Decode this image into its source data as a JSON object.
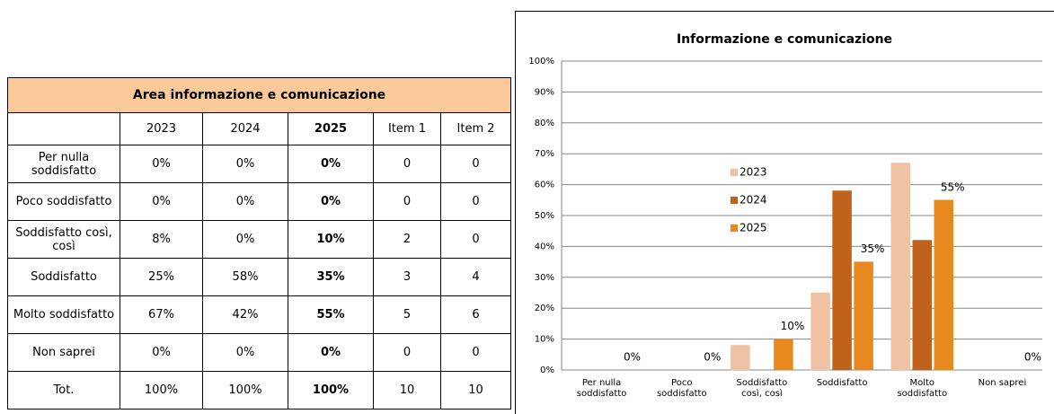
{
  "table": {
    "title": "Area informazione e comunicazione",
    "columns": [
      "2023",
      "2024",
      "2025",
      "Item 1",
      "Item 2"
    ],
    "rows": [
      [
        "Per nulla soddisfatto",
        "0%",
        "0%",
        "0%",
        "0",
        "0"
      ],
      [
        "Poco soddisfatto",
        "0%",
        "0%",
        "0%",
        "0",
        "0"
      ],
      [
        "Soddisfatto così, così",
        "8%",
        "0%",
        "10%",
        "2",
        "0"
      ],
      [
        "Soddisfatto",
        "25%",
        "58%",
        "35%",
        "3",
        "4"
      ],
      [
        "Molto soddisfatto",
        "67%",
        "42%",
        "55%",
        "5",
        "6"
      ],
      [
        "Non saprei",
        "0%",
        "0%",
        "0%",
        "0",
        "0"
      ],
      [
        "Tot.",
        "100%",
        "100%",
        "100%",
        "10",
        "10"
      ]
    ]
  },
  "chart_data": {
    "type": "bar",
    "title": "Informazione e comunicazione",
    "categories": [
      "Per nulla soddisfatto",
      "Poco soddisfatto",
      "Soddisfatto così, così",
      "Soddisfatto",
      "Molto soddisfatto",
      "Non saprei"
    ],
    "series": [
      {
        "name": "2023",
        "color": "#f0c2a4",
        "values": [
          0,
          0,
          8,
          25,
          67,
          0
        ]
      },
      {
        "name": "2024",
        "color": "#c0611c",
        "values": [
          0,
          0,
          0,
          58,
          42,
          0
        ]
      },
      {
        "name": "2025",
        "color": "#e8891f",
        "values": [
          0,
          0,
          10,
          35,
          55,
          0
        ],
        "value_labels": [
          "0%",
          "0%",
          "10%",
          "35%",
          "55%",
          "0%"
        ]
      }
    ],
    "ylim": [
      0,
      100
    ],
    "yticks": [
      {
        "value": 0,
        "label": "0%"
      },
      {
        "value": 10,
        "label": "10%"
      },
      {
        "value": 20,
        "label": "20%"
      },
      {
        "value": 30,
        "label": "30%"
      },
      {
        "value": 40,
        "label": "40%"
      },
      {
        "value": 50,
        "label": "50%"
      },
      {
        "value": 60,
        "label": "60%"
      },
      {
        "value": 70,
        "label": "70%"
      },
      {
        "value": 80,
        "label": "80%"
      },
      {
        "value": 90,
        "label": "90%"
      },
      {
        "value": 100,
        "label": "100%"
      }
    ],
    "grid": true,
    "legend": "upper center"
  }
}
